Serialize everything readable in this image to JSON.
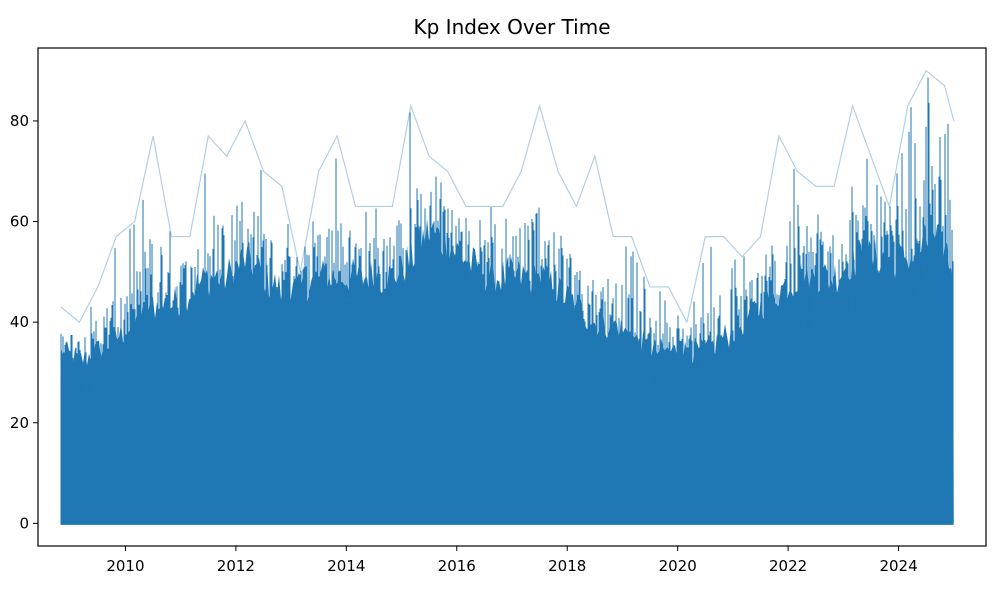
{
  "chart_data": {
    "type": "line",
    "title": "Kp Index Over Time",
    "xlabel": "",
    "ylabel": "",
    "x_range": [
      "2008-11",
      "2025-01"
    ],
    "xlim": [
      "2008-06",
      "2025-08"
    ],
    "ylim": [
      -4.5,
      94.5
    ],
    "x_ticks": [
      "2010",
      "2012",
      "2014",
      "2016",
      "2018",
      "2020",
      "2022",
      "2024"
    ],
    "y_ticks": [
      0,
      20,
      40,
      60,
      80
    ],
    "grid": false,
    "legend": "none",
    "line_color": "#1f77b4",
    "notes_visible": "dense high-frequency series spanning 0 to about 90",
    "series": [
      {
        "x": [
          "2008-11",
          "2009-03",
          "2009-07",
          "2009-11",
          "2010-03",
          "2010-07",
          "2010-11",
          "2011-03",
          "2011-07",
          "2011-11",
          "2012-03",
          "2012-07",
          "2012-11",
          "2013-03",
          "2013-07",
          "2013-11",
          "2014-03",
          "2014-07",
          "2014-11",
          "2015-03",
          "2015-07",
          "2015-11",
          "2016-03",
          "2016-07",
          "2016-11",
          "2017-03",
          "2017-07",
          "2017-11",
          "2018-03",
          "2018-07",
          "2018-11",
          "2019-03",
          "2019-07",
          "2019-11",
          "2020-03",
          "2020-07",
          "2020-11",
          "2021-03",
          "2021-07",
          "2021-11",
          "2022-03",
          "2022-07",
          "2022-11",
          "2023-03",
          "2023-07",
          "2023-11",
          "2024-03",
          "2024-07",
          "2024-11",
          "2025-01"
        ],
        "max": [
          43,
          40,
          47,
          57,
          60,
          77,
          57,
          57,
          77,
          73,
          80,
          70,
          67,
          50,
          70,
          77,
          63,
          63,
          63,
          83,
          73,
          70,
          63,
          63,
          63,
          70,
          83,
          70,
          63,
          73,
          57,
          57,
          47,
          47,
          40,
          57,
          57,
          53,
          57,
          77,
          70,
          67,
          67,
          83,
          73,
          63,
          83,
          90,
          87,
          80
        ],
        "typical_high": [
          37,
          35,
          37,
          40,
          43,
          47,
          47,
          50,
          53,
          53,
          57,
          53,
          50,
          50,
          53,
          53,
          53,
          53,
          53,
          57,
          63,
          60,
          57,
          53,
          53,
          53,
          53,
          50,
          47,
          43,
          43,
          40,
          37,
          37,
          37,
          37,
          40,
          43,
          47,
          50,
          53,
          53,
          53,
          57,
          57,
          57,
          57,
          60,
          60,
          53
        ],
        "min": [
          0,
          0,
          0,
          0,
          0,
          0,
          0,
          0,
          0,
          0,
          0,
          0,
          0,
          0,
          0,
          0,
          0,
          0,
          0,
          0,
          0,
          0,
          0,
          0,
          0,
          0,
          0,
          0,
          0,
          0,
          0,
          0,
          0,
          0,
          0,
          0,
          0,
          0,
          0,
          0,
          0,
          0,
          0,
          0,
          0,
          0,
          0,
          0,
          0,
          0
        ]
      }
    ]
  }
}
